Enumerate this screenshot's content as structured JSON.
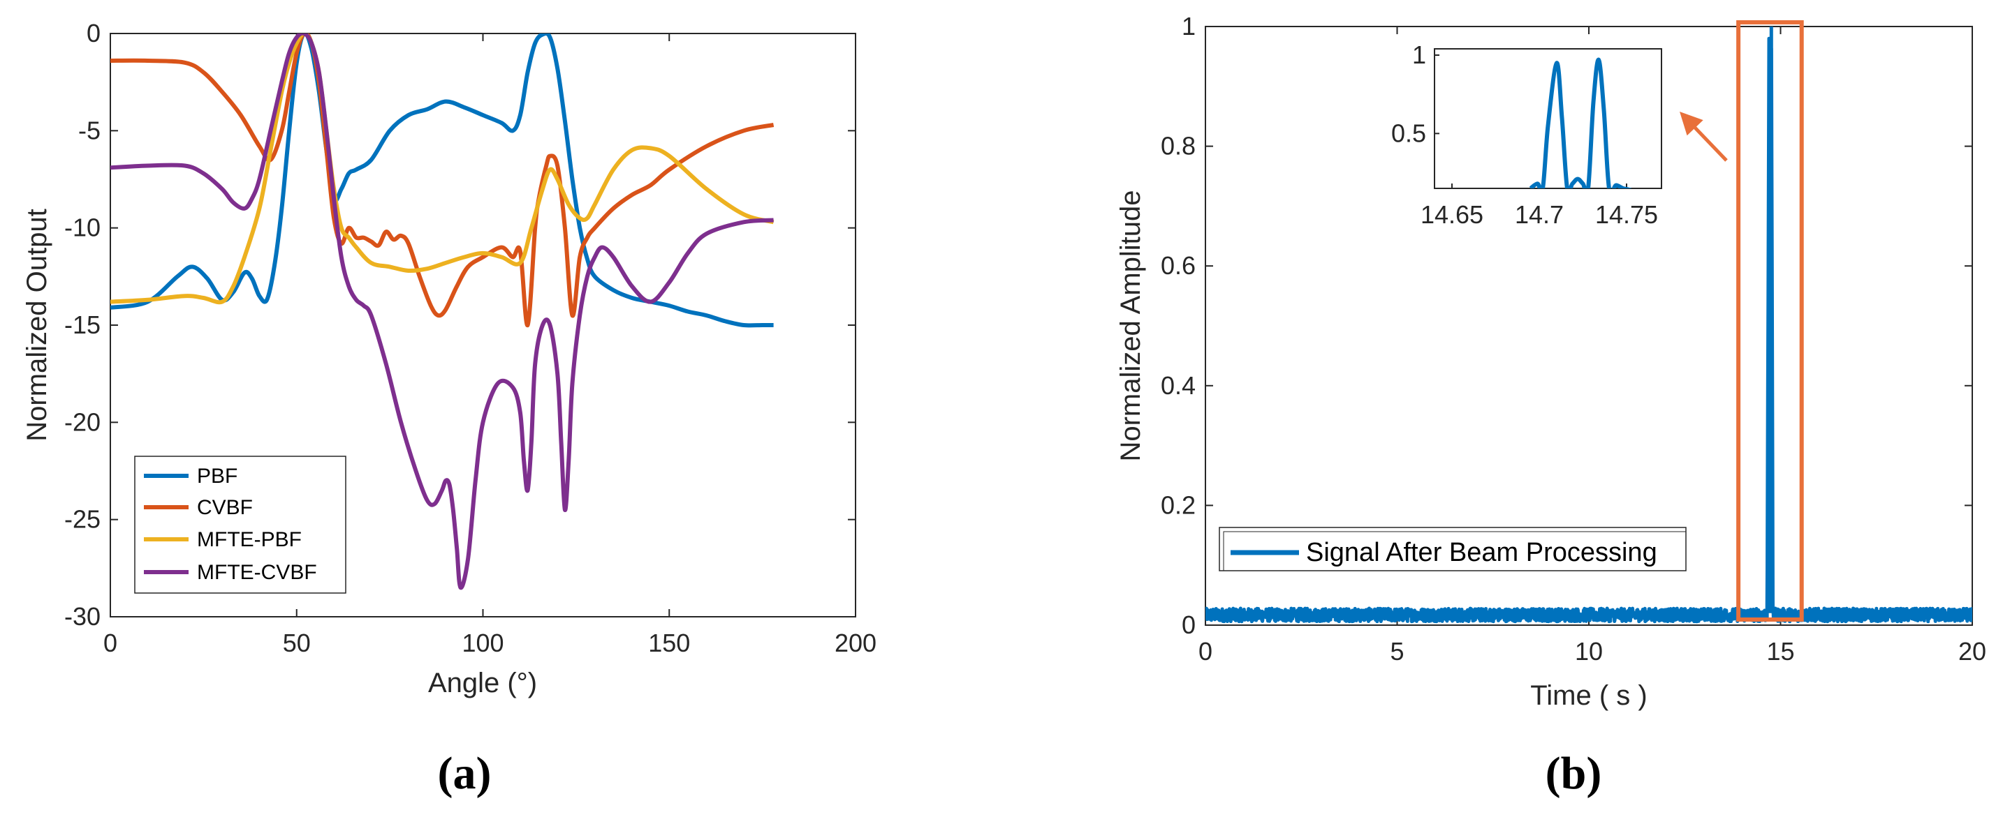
{
  "chart_data": [
    {
      "type": "line",
      "caption": "(a)",
      "xlabel": "Angle (°)",
      "ylabel": "Normalized Output",
      "xlim": [
        0,
        200
      ],
      "ylim": [
        -30,
        0
      ],
      "xticks": [
        0,
        50,
        100,
        150,
        200
      ],
      "yticks": [
        0,
        -5,
        -10,
        -15,
        -20,
        -25,
        -30
      ],
      "grid": false,
      "legend_position": "bottom-left",
      "series": [
        {
          "name": "PBF",
          "color": "#0072BD",
          "x": [
            0,
            10,
            18,
            22,
            26,
            30,
            33,
            36,
            38,
            40,
            42,
            44,
            46,
            48,
            50,
            52,
            54,
            56,
            58,
            60,
            62,
            64,
            66,
            70,
            75,
            80,
            85,
            90,
            95,
            100,
            105,
            108,
            110,
            112,
            114,
            116,
            118,
            120,
            122,
            124,
            126,
            128,
            130,
            135,
            140,
            145,
            150,
            155,
            160,
            165,
            170,
            175,
            178
          ],
          "y": [
            -14.1,
            -13.8,
            -12.5,
            -12.0,
            -12.6,
            -13.7,
            -13.3,
            -12.3,
            -12.6,
            -13.5,
            -13.7,
            -12.0,
            -9.0,
            -5.0,
            -1.5,
            0,
            -0.8,
            -3.0,
            -6.0,
            -8.5,
            -8.0,
            -7.2,
            -7.0,
            -6.5,
            -5.0,
            -4.2,
            -3.9,
            -3.5,
            -3.8,
            -4.2,
            -4.6,
            -5.0,
            -4.2,
            -2.0,
            -0.5,
            -0.05,
            -0.2,
            -1.8,
            -4.5,
            -7.5,
            -10.0,
            -11.6,
            -12.5,
            -13.2,
            -13.6,
            -13.8,
            -14.0,
            -14.3,
            -14.5,
            -14.8,
            -15.0,
            -15.0,
            -15.0
          ]
        },
        {
          "name": "CVBF",
          "color": "#D95319",
          "x": [
            0,
            10,
            20,
            25,
            30,
            35,
            40,
            43,
            46,
            48,
            50,
            52,
            54,
            56,
            58,
            60,
            62,
            64,
            66,
            68,
            70,
            72,
            74,
            76,
            78,
            80,
            83,
            86,
            88,
            90,
            93,
            96,
            100,
            105,
            108,
            110,
            112,
            114,
            115,
            117,
            118,
            120,
            122,
            124,
            126,
            128,
            130,
            135,
            140,
            145,
            150,
            160,
            170,
            178
          ],
          "y": [
            -1.4,
            -1.4,
            -1.5,
            -2.0,
            -3.0,
            -4.2,
            -5.8,
            -6.5,
            -5.0,
            -3.0,
            -1.0,
            0,
            -0.5,
            -2.5,
            -6.0,
            -9.5,
            -10.8,
            -10.0,
            -10.5,
            -10.5,
            -10.7,
            -10.9,
            -10.2,
            -10.6,
            -10.4,
            -10.8,
            -12.5,
            -14.0,
            -14.5,
            -14.2,
            -13.0,
            -12.0,
            -11.5,
            -11.0,
            -11.5,
            -11.2,
            -15.0,
            -10.0,
            -8.5,
            -6.8,
            -6.3,
            -6.8,
            -10.0,
            -14.5,
            -11.5,
            -10.5,
            -10.0,
            -9.0,
            -8.3,
            -7.8,
            -7.0,
            -5.8,
            -5.0,
            -4.7
          ]
        },
        {
          "name": "MFTE-PBF",
          "color": "#EDB120",
          "x": [
            0,
            10,
            20,
            25,
            30,
            33,
            36,
            40,
            43,
            46,
            48,
            50,
            52,
            54,
            56,
            58,
            60,
            62,
            64,
            66,
            70,
            75,
            80,
            85,
            90,
            95,
            100,
            105,
            110,
            113,
            116,
            118,
            120,
            123,
            126,
            128,
            130,
            135,
            140,
            145,
            150,
            160,
            170,
            178
          ],
          "y": [
            -13.8,
            -13.7,
            -13.5,
            -13.6,
            -13.8,
            -13.0,
            -11.5,
            -9.0,
            -6.0,
            -3.0,
            -1.5,
            -0.5,
            0,
            -0.5,
            -2.0,
            -5.0,
            -8.0,
            -10.0,
            -10.5,
            -11.0,
            -11.8,
            -12.0,
            -12.2,
            -12.1,
            -11.8,
            -11.5,
            -11.3,
            -11.5,
            -11.8,
            -10.0,
            -8.0,
            -7.0,
            -7.5,
            -8.8,
            -9.5,
            -9.5,
            -8.8,
            -7.0,
            -6.0,
            -5.9,
            -6.3,
            -8.0,
            -9.3,
            -9.7
          ]
        },
        {
          "name": "MFTE-CVBF",
          "color": "#7E2F8E",
          "x": [
            0,
            10,
            20,
            25,
            30,
            33,
            36,
            38,
            40,
            43,
            46,
            48,
            50,
            52,
            54,
            56,
            58,
            60,
            62,
            64,
            66,
            68,
            70,
            74,
            78,
            82,
            85,
            87,
            89,
            90,
            91,
            92,
            93,
            94,
            96,
            98,
            100,
            104,
            108,
            110,
            111,
            112,
            113,
            114,
            116,
            118,
            120,
            121,
            122,
            123,
            124,
            126,
            128,
            130,
            132,
            135,
            140,
            145,
            150,
            155,
            160,
            170,
            178
          ],
          "y": [
            -6.9,
            -6.8,
            -6.8,
            -7.2,
            -8.0,
            -8.7,
            -9.0,
            -8.5,
            -7.5,
            -5.0,
            -2.5,
            -1.0,
            -0.2,
            0,
            -0.5,
            -2.0,
            -5.0,
            -8.5,
            -11.5,
            -13.0,
            -13.7,
            -14.0,
            -14.5,
            -17.0,
            -20.0,
            -22.5,
            -24.0,
            -24.2,
            -23.5,
            -23.0,
            -23.2,
            -24.5,
            -26.5,
            -28.5,
            -27.0,
            -23.0,
            -20.0,
            -18.0,
            -18.2,
            -19.5,
            -22.0,
            -23.5,
            -21.0,
            -17.0,
            -15.0,
            -15.0,
            -17.5,
            -21.0,
            -24.5,
            -22.0,
            -18.0,
            -14.5,
            -12.5,
            -11.5,
            -11.0,
            -11.5,
            -13.0,
            -13.8,
            -12.8,
            -11.3,
            -10.3,
            -9.7,
            -9.6
          ]
        }
      ]
    },
    {
      "type": "line",
      "caption": "(b)",
      "xlabel": "Time ( s )",
      "ylabel": "Normalized Amplitude",
      "xlim": [
        0,
        20
      ],
      "ylim": [
        0,
        1
      ],
      "xticks": [
        0,
        5,
        10,
        15,
        20
      ],
      "yticks": [
        0,
        0.2,
        0.4,
        0.6,
        0.8,
        1
      ],
      "ytick_labels": [
        "0",
        "0.2",
        "0.4",
        "0.6",
        "0.8",
        "1"
      ],
      "grid": false,
      "legend_position": "bottom-left",
      "highlight_box_x": [
        13.9,
        15.55
      ],
      "highlight_color": "#E8703A",
      "series": [
        {
          "name": "Signal After Beam Processing",
          "color": "#0072BD",
          "noise_level": 0.02,
          "x": [
            0,
            9.7,
            9.75,
            9.8,
            14.65,
            14.7,
            14.72,
            14.74,
            14.76,
            14.8,
            14.85,
            14.9,
            15.0,
            16.95,
            17.0,
            17.05,
            18.2,
            18.25,
            18.3,
            20
          ],
          "y": [
            0.01,
            0.02,
            0.055,
            0.02,
            0.02,
            0.98,
            0.85,
            0.22,
            1.0,
            0.05,
            0.08,
            0.03,
            0.02,
            0.02,
            0.06,
            0.02,
            0.02,
            0.055,
            0.02,
            0.01
          ]
        }
      ],
      "inset": {
        "xlim": [
          14.64,
          14.77
        ],
        "ylim": [
          0.15,
          1.04
        ],
        "xticks": [
          14.65,
          14.7,
          14.75
        ],
        "xtick_labels": [
          "14.65",
          "14.7",
          "14.75"
        ],
        "yticks": [
          0.5,
          1
        ],
        "ytick_labels": [
          "0.5",
          "1"
        ],
        "x": [
          14.695,
          14.699,
          14.702,
          14.705,
          14.71,
          14.713,
          14.716,
          14.719,
          14.722,
          14.725,
          14.728,
          14.731,
          14.734,
          14.737,
          14.74,
          14.744,
          14.748,
          14.752,
          14.755
        ],
        "y": [
          0.15,
          0.18,
          0.15,
          0.55,
          0.95,
          0.6,
          0.15,
          0.18,
          0.21,
          0.18,
          0.15,
          0.7,
          0.97,
          0.65,
          0.15,
          0.17,
          0.15,
          0.14,
          0.12
        ]
      }
    }
  ]
}
